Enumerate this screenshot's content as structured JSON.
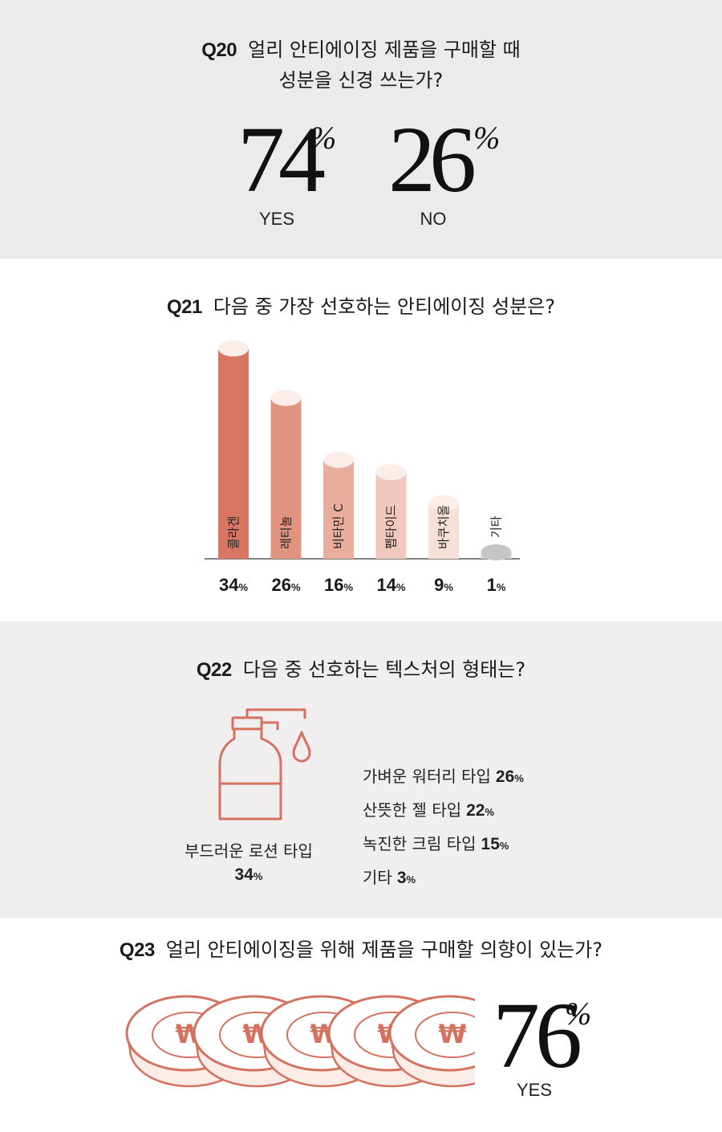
{
  "q20": {
    "number": "Q20",
    "title_line1": "얼리 안티에이징 제품을 구매할 때",
    "title_line2": "성분을 신경 쓰는가?",
    "yes_value": "74",
    "yes_label": "YES",
    "no_value": "26",
    "no_label": "NO",
    "percent_sign": "%"
  },
  "q21": {
    "number": "Q21",
    "title": "다음 중 가장 선호하는 안티에이징 성분은?"
  },
  "q22": {
    "number": "Q22",
    "title": "다음 중 선호하는 텍스처의 형태는?",
    "main_label": "부드러운 로션 타입",
    "main_value": "34",
    "items": [
      {
        "label": "가벼운 워터리 타입",
        "value": "26"
      },
      {
        "label": "산뜻한 젤 타입",
        "value": "22"
      },
      {
        "label": "녹진한 크림 타입",
        "value": "15"
      },
      {
        "label": "기타",
        "value": "3"
      }
    ]
  },
  "q23": {
    "number": "Q23",
    "title": "얼리 안티에이징을 위해 제품을 구매할 의향이 있는가?",
    "value": "76",
    "label": "YES",
    "coin_symbol": "₩"
  },
  "percent_small": "%",
  "colors": {
    "bar1": "#d87664",
    "bar2": "#e0937f",
    "bar3": "#e8ad9c",
    "bar4": "#f1c8bc",
    "bar5": "#f7e0d8",
    "bar6": "#d0d0d0",
    "accent": "#d4715f"
  },
  "chart_data": {
    "type": "bar",
    "categories": [
      "콜라겐",
      "레티놀",
      "비타민 C",
      "펩타이드",
      "바쿠치올",
      "기타"
    ],
    "values": [
      34,
      26,
      16,
      14,
      9,
      1
    ],
    "unit": "%",
    "title": "다음 중 가장 선호하는 안티에이징 성분은?",
    "xlabel": "",
    "ylabel": "",
    "ylim": [
      0,
      34
    ],
    "grid": false
  }
}
